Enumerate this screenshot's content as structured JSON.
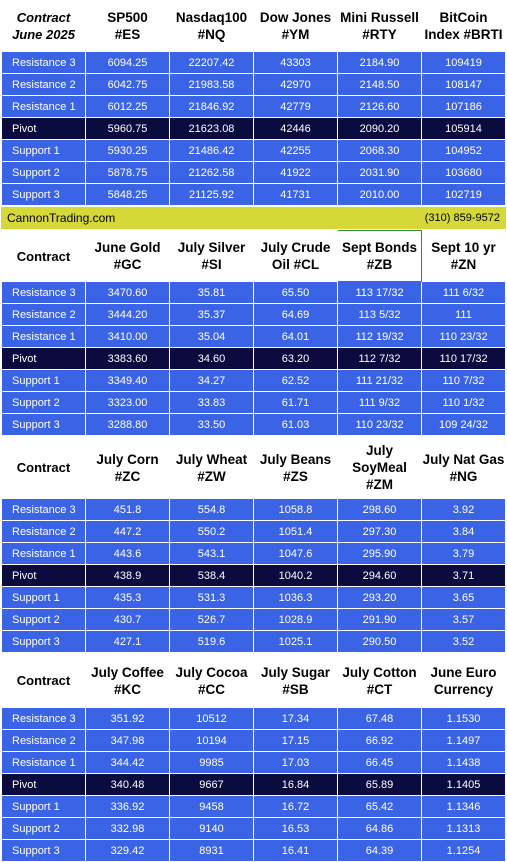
{
  "sections": [
    {
      "header": [
        "Contract\nJune 2025",
        "SP500\n#ES",
        "Nasdaq100\n#NQ",
        "Dow Jones\n#YM",
        "Mini Russell\n#RTY",
        "BitCoin\nIndex #BRTI"
      ],
      "rows": [
        [
          "Resistance 3",
          "6094.25",
          "22207.42",
          "43303",
          "2184.90",
          "109419"
        ],
        [
          "Resistance 2",
          "6042.75",
          "21983.58",
          "42970",
          "2148.50",
          "108147"
        ],
        [
          "Resistance 1",
          "6012.25",
          "21846.92",
          "42779",
          "2126.60",
          "107186"
        ],
        [
          "Pivot",
          "5960.75",
          "21623.08",
          "42446",
          "2090.20",
          "105914"
        ],
        [
          "Support 1",
          "5930.25",
          "21486.42",
          "42255",
          "2068.30",
          "104952"
        ],
        [
          "Support 2",
          "5878.75",
          "21262.58",
          "41922",
          "2031.90",
          "103680"
        ],
        [
          "Support 3",
          "5848.25",
          "21125.92",
          "41731",
          "2010.00",
          "102719"
        ]
      ]
    },
    {
      "header": [
        "Contract",
        "June Gold\n#GC",
        "July Silver\n#SI",
        "July Crude\nOil #CL",
        "Sept Bonds\n#ZB",
        "Sept 10 yr\n#ZN"
      ],
      "rows": [
        [
          "Resistance 3",
          "3470.60",
          "35.81",
          "65.50",
          "113 17/32",
          "111  6/32"
        ],
        [
          "Resistance 2",
          "3444.20",
          "35.37",
          "64.69",
          "113  5/32",
          "111"
        ],
        [
          "Resistance 1",
          "3410.00",
          "35.04",
          "64.01",
          "112 19/32",
          "110 23/32"
        ],
        [
          "Pivot",
          "3383.60",
          "34.60",
          "63.20",
          "112  7/32",
          "110 17/32"
        ],
        [
          "Support 1",
          "3349.40",
          "34.27",
          "62.52",
          "111 21/32",
          "110  7/32"
        ],
        [
          "Support 2",
          "3323.00",
          "33.83",
          "61.71",
          "111  9/32",
          "110  1/32"
        ],
        [
          "Support 3",
          "3288.80",
          "33.50",
          "61.03",
          "110 23/32",
          "109 24/32"
        ]
      ]
    },
    {
      "header": [
        "Contract",
        "July Corn\n#ZC",
        "July  Wheat\n#ZW",
        "July Beans\n#ZS",
        "July\nSoyMeal\n#ZM",
        "July Nat Gas\n#NG"
      ],
      "rows": [
        [
          "Resistance 3",
          "451.8",
          "554.8",
          "1058.8",
          "298.60",
          "3.92"
        ],
        [
          "Resistance 2",
          "447.2",
          "550.2",
          "1051.4",
          "297.30",
          "3.84"
        ],
        [
          "Resistance 1",
          "443.6",
          "543.1",
          "1047.6",
          "295.90",
          "3.79"
        ],
        [
          "Pivot",
          "438.9",
          "538.4",
          "1040.2",
          "294.60",
          "3.71"
        ],
        [
          "Support 1",
          "435.3",
          "531.3",
          "1036.3",
          "293.20",
          "3.65"
        ],
        [
          "Support 2",
          "430.7",
          "526.7",
          "1028.9",
          "291.90",
          "3.57"
        ],
        [
          "Support 3",
          "427.1",
          "519.6",
          "1025.1",
          "290.50",
          "3.52"
        ]
      ]
    },
    {
      "header": [
        "Contract",
        "July Coffee\n#KC",
        "July Cocoa\n#CC",
        "July Sugar\n#SB",
        "July Cotton\n#CT",
        "June Euro\nCurrency"
      ],
      "rows": [
        [
          "Resistance 3",
          "351.92",
          "10512",
          "17.34",
          "67.48",
          "1.1530"
        ],
        [
          "Resistance 2",
          "347.98",
          "10194",
          "17.15",
          "66.92",
          "1.1497"
        ],
        [
          "Resistance 1",
          "344.42",
          "9985",
          "17.03",
          "66.45",
          "1.1438"
        ],
        [
          "Pivot",
          "340.48",
          "9667",
          "16.84",
          "65.89",
          "1.1405"
        ],
        [
          "Support 1",
          "336.92",
          "9458",
          "16.72",
          "65.42",
          "1.1346"
        ],
        [
          "Support 2",
          "332.98",
          "9140",
          "16.53",
          "64.86",
          "1.1313"
        ],
        [
          "Support 3",
          "329.42",
          "8931",
          "16.41",
          "64.39",
          "1.1254"
        ]
      ]
    }
  ],
  "banner": {
    "left": "CannonTrading.com",
    "right": "(310) 859-9572"
  },
  "colors": {
    "row_bg": "#3b63e6",
    "pivot_bg": "#0b0b3f",
    "banner_bg": "#d6d83a",
    "header_bg": "#ffffff",
    "selected_border": "#2f8a3f"
  }
}
